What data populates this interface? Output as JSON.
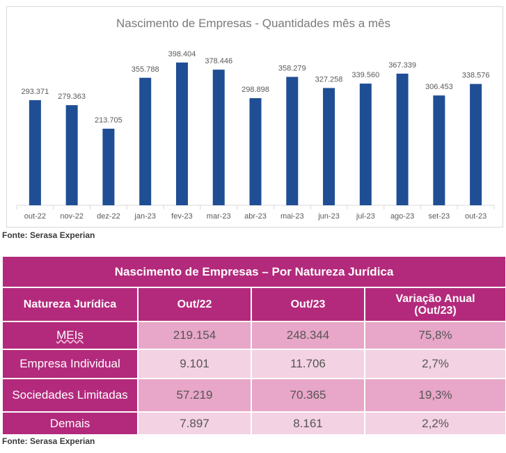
{
  "chart_data": {
    "type": "bar",
    "title": "Nascimento de Empresas - Quantidades mês a mês",
    "categories": [
      "out-22",
      "nov-22",
      "dez-22",
      "jan-23",
      "fev-23",
      "mar-23",
      "abr-23",
      "mai-23",
      "jun-23",
      "jul-23",
      "ago-23",
      "set-23",
      "out-23"
    ],
    "values": [
      293371,
      279363,
      213705,
      355788,
      398404,
      378446,
      298898,
      358279,
      327258,
      339560,
      367339,
      306453,
      338576
    ],
    "value_labels": [
      "293.371",
      "279.363",
      "213.705",
      "355.788",
      "398.404",
      "378.446",
      "298.898",
      "358.279",
      "327.258",
      "339.560",
      "367.339",
      "306.453",
      "338.576"
    ],
    "ylim": [
      0,
      400000
    ],
    "bar_color": "#1f4e94",
    "grid": false,
    "legend": "none"
  },
  "chart_source": "Fonte: Serasa Experian",
  "table": {
    "title": "Nascimento de Empresas – Por Natureza Jurídica",
    "headers": [
      "Natureza Jurídica",
      "Out/22",
      "Out/23",
      "Variação Anual",
      "(Out/23)"
    ],
    "rows": [
      {
        "label": "MEIs",
        "out22": "219.154",
        "out23": "248.344",
        "var": "75,8%"
      },
      {
        "label": "Empresa Individual",
        "out22": "9.101",
        "out23": "11.706",
        "var": "2,7%"
      },
      {
        "label": "Sociedades Limitadas",
        "out22": "57.219",
        "out23": "70.365",
        "var": "19,3%"
      },
      {
        "label": "Demais",
        "out22": "7.897",
        "out23": "8.161",
        "var": "2,2%"
      }
    ],
    "source": "Fonte: Serasa Experian",
    "colors": {
      "header": "#b32a7c",
      "row_dark": "#e8a6c8",
      "row_light": "#f3d2e3"
    }
  }
}
